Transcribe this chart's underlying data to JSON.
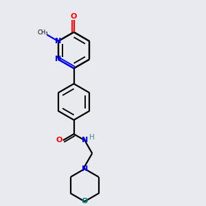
{
  "bg_color": "#e8eaf0",
  "bc": "#000000",
  "nc": "#0000ff",
  "oc": "#ff0000",
  "oc2": "#008080",
  "hc": "#4a8888",
  "lw": 1.6,
  "fs": 7.5,
  "xlim": [
    0,
    10
  ],
  "ylim": [
    0,
    10
  ]
}
